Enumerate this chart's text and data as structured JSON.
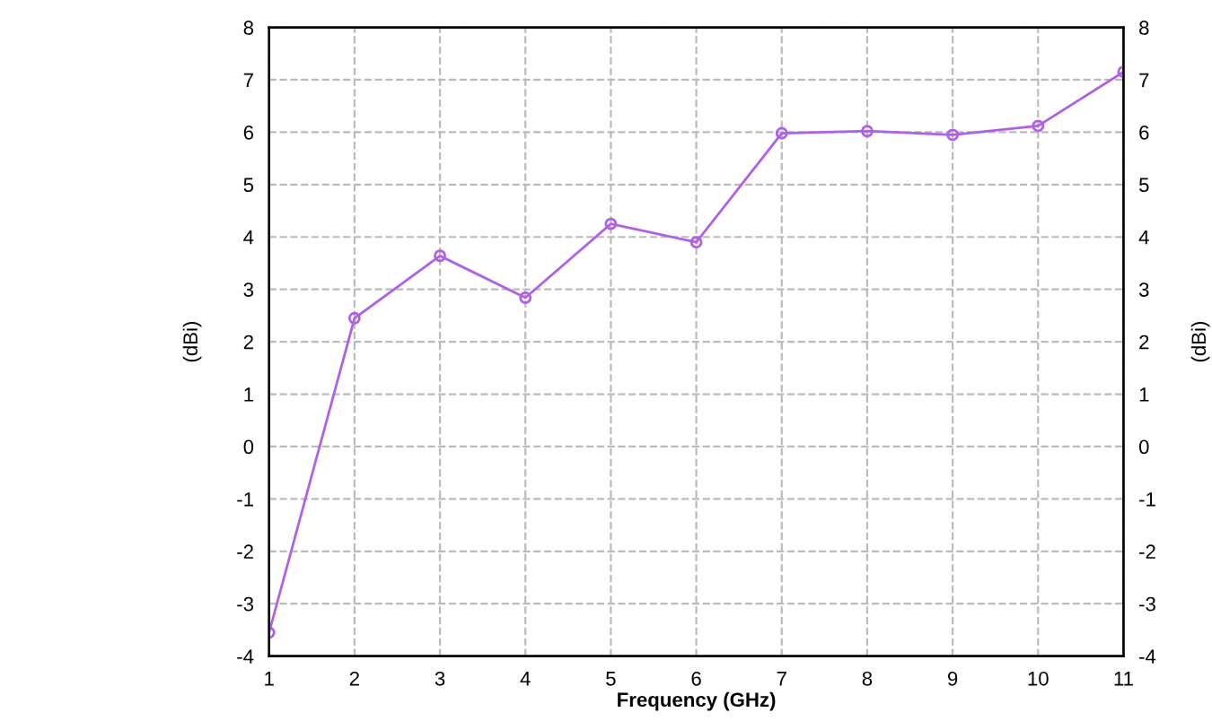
{
  "chart_data": {
    "type": "line",
    "xlabel": "Frequency (GHz)",
    "ylabel": "(dBi)",
    "y2label": "(dBi)",
    "x": [
      1,
      2,
      3,
      4,
      5,
      6,
      7,
      8,
      9,
      10,
      11
    ],
    "series": [
      {
        "color": "#b060e6",
        "values": [
          -3.55,
          2.45,
          3.64,
          2.84,
          4.25,
          3.9,
          5.98,
          6.02,
          5.95,
          6.12,
          7.15
        ]
      }
    ],
    "xlim": [
      1,
      11
    ],
    "xticks": [
      1,
      2,
      3,
      4,
      5,
      6,
      7,
      8,
      9,
      10,
      11
    ],
    "ylim": [
      -4,
      8
    ],
    "yticks": [
      -4,
      -3,
      -2,
      -1,
      0,
      1,
      2,
      3,
      4,
      5,
      6,
      7,
      8
    ],
    "y2lim": [
      -4,
      8
    ],
    "y2ticks": [
      -4,
      -3,
      -2,
      -1,
      0,
      1,
      2,
      3,
      4,
      5,
      6,
      7,
      8
    ],
    "grid": true,
    "marker": "circle",
    "line_style": "solid"
  }
}
